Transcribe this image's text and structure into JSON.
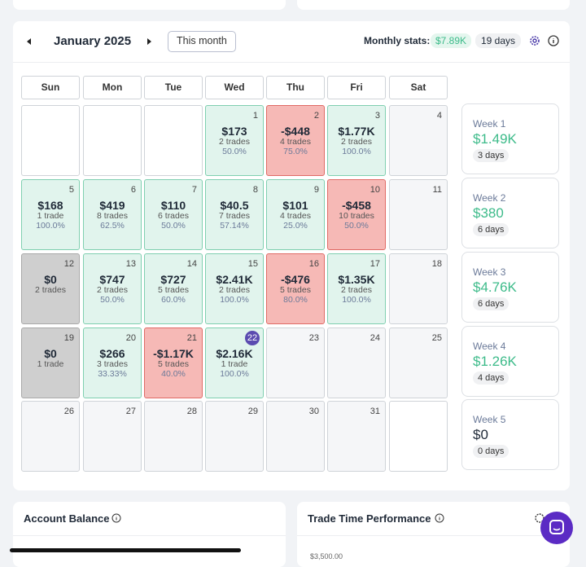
{
  "header": {
    "month": "January 2025",
    "this_month": "This month",
    "stats_label": "Monthly stats:",
    "stats_value": "$7.89K",
    "stats_days": "19 days"
  },
  "weekdays": [
    "Sun",
    "Mon",
    "Tue",
    "Wed",
    "Thu",
    "Fri",
    "Sat"
  ],
  "days": [
    null,
    null,
    null,
    {
      "day": 1,
      "pnl": "$173",
      "trades": "2 trades",
      "win": "50.0%",
      "state": "profit"
    },
    {
      "day": 2,
      "pnl": "-$448",
      "trades": "4 trades",
      "win": "75.0%",
      "state": "loss"
    },
    {
      "day": 3,
      "pnl": "$1.77K",
      "trades": "2 trades",
      "win": "100.0%",
      "state": "profit"
    },
    {
      "day": 4
    },
    {
      "day": 5,
      "pnl": "$168",
      "trades": "1 trade",
      "win": "100.0%",
      "state": "profit"
    },
    {
      "day": 6,
      "pnl": "$419",
      "trades": "8 trades",
      "win": "62.5%",
      "state": "profit"
    },
    {
      "day": 7,
      "pnl": "$110",
      "trades": "6 trades",
      "win": "50.0%",
      "state": "profit"
    },
    {
      "day": 8,
      "pnl": "$40.5",
      "trades": "7 trades",
      "win": "57.14%",
      "state": "profit"
    },
    {
      "day": 9,
      "pnl": "$101",
      "trades": "4 trades",
      "win": "25.0%",
      "state": "profit"
    },
    {
      "day": 10,
      "pnl": "-$458",
      "trades": "10 trades",
      "win": "50.0%",
      "state": "loss"
    },
    {
      "day": 11
    },
    {
      "day": 12,
      "pnl": "$0",
      "trades": "2 trades",
      "state": "flat"
    },
    {
      "day": 13,
      "pnl": "$747",
      "trades": "2 trades",
      "win": "50.0%",
      "state": "profit"
    },
    {
      "day": 14,
      "pnl": "$727",
      "trades": "5 trades",
      "win": "60.0%",
      "state": "profit"
    },
    {
      "day": 15,
      "pnl": "$2.41K",
      "trades": "2 trades",
      "win": "100.0%",
      "state": "profit"
    },
    {
      "day": 16,
      "pnl": "-$476",
      "trades": "5 trades",
      "win": "80.0%",
      "state": "loss"
    },
    {
      "day": 17,
      "pnl": "$1.35K",
      "trades": "2 trades",
      "win": "100.0%",
      "state": "profit"
    },
    {
      "day": 18
    },
    {
      "day": 19,
      "pnl": "$0",
      "trades": "1 trade",
      "state": "flat"
    },
    {
      "day": 20,
      "pnl": "$266",
      "trades": "3 trades",
      "win": "33.33%",
      "state": "profit"
    },
    {
      "day": 21,
      "pnl": "-$1.17K",
      "trades": "5 trades",
      "win": "40.0%",
      "state": "loss"
    },
    {
      "day": 22,
      "pnl": "$2.16K",
      "trades": "1 trade",
      "win": "100.0%",
      "state": "profit",
      "today": true
    },
    {
      "day": 23
    },
    {
      "day": 24
    },
    {
      "day": 25
    },
    {
      "day": 26
    },
    {
      "day": 27
    },
    {
      "day": 28
    },
    {
      "day": 29
    },
    {
      "day": 30
    },
    {
      "day": 31
    },
    null
  ],
  "weeks": [
    {
      "label": "Week 1",
      "value": "$1.49K",
      "days": "3 days",
      "state": "profit"
    },
    {
      "label": "Week 2",
      "value": "$380",
      "days": "6 days",
      "state": "profit"
    },
    {
      "label": "Week 3",
      "value": "$4.76K",
      "days": "6 days",
      "state": "profit"
    },
    {
      "label": "Week 4",
      "value": "$1.26K",
      "days": "4 days",
      "state": "profit"
    },
    {
      "label": "Week 5",
      "value": "$0",
      "days": "0 days",
      "state": "flat"
    }
  ],
  "bottom": {
    "account_balance": "Account Balance",
    "trade_time": "Trade Time Performance",
    "axis_label": "$3,500.00"
  }
}
